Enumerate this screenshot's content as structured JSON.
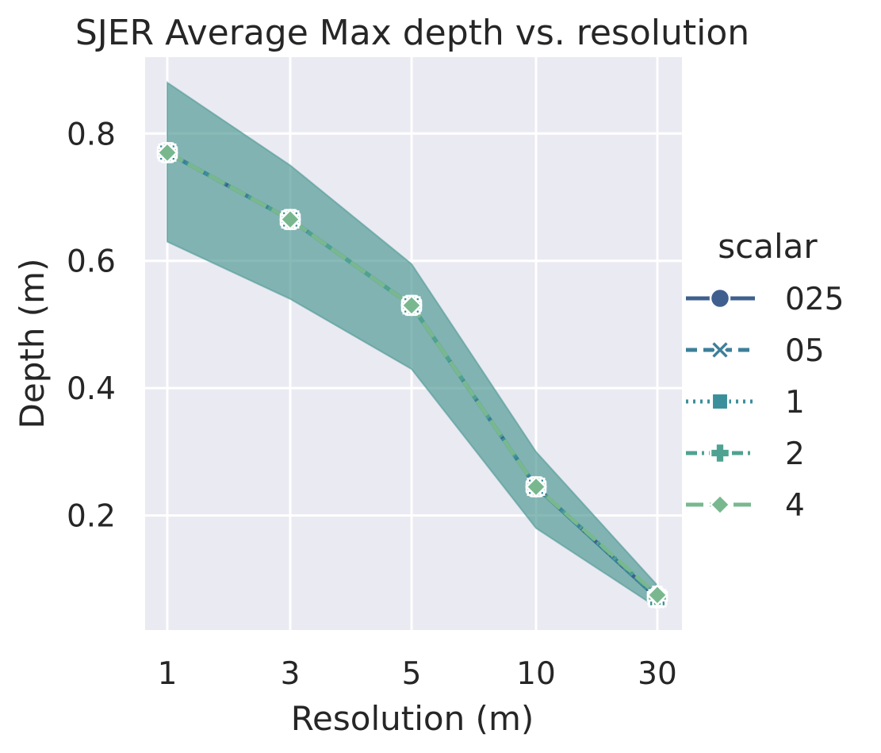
{
  "chart_data": {
    "type": "line",
    "title": "SJER Average Max depth vs. resolution",
    "xlabel": "Resolution (m)",
    "ylabel": "Depth (m)",
    "x": [
      "1",
      "3",
      "5",
      "10",
      "30"
    ],
    "x_scale": "categorical",
    "yticks": [
      "0.2",
      "0.4",
      "0.6",
      "0.8"
    ],
    "ylim": [
      0.02,
      0.92
    ],
    "grid": true,
    "legend": {
      "title": "scalar",
      "position": "right"
    },
    "band": {
      "lower": [
        0.63,
        0.54,
        0.43,
        0.18,
        0.055
      ],
      "upper": [
        0.88,
        0.75,
        0.595,
        0.3,
        0.09
      ]
    },
    "series": [
      {
        "name": "025",
        "values": [
          0.77,
          0.665,
          0.53,
          0.245,
          0.07
        ],
        "color": "#3f5f8f",
        "marker": "circle",
        "dash": "solid"
      },
      {
        "name": "05",
        "values": [
          0.77,
          0.665,
          0.53,
          0.245,
          0.07
        ],
        "color": "#3d7f99",
        "marker": "x",
        "dash": "dashed"
      },
      {
        "name": "1",
        "values": [
          0.77,
          0.665,
          0.53,
          0.245,
          0.07
        ],
        "color": "#3b8f9a",
        "marker": "square",
        "dash": "dotted"
      },
      {
        "name": "2",
        "values": [
          0.77,
          0.665,
          0.53,
          0.245,
          0.073
        ],
        "color": "#4fa291",
        "marker": "plus",
        "dash": "dashdot"
      },
      {
        "name": "4",
        "values": [
          0.77,
          0.665,
          0.53,
          0.245,
          0.075
        ],
        "color": "#79b88f",
        "marker": "diamond",
        "dash": "longdash"
      }
    ]
  }
}
